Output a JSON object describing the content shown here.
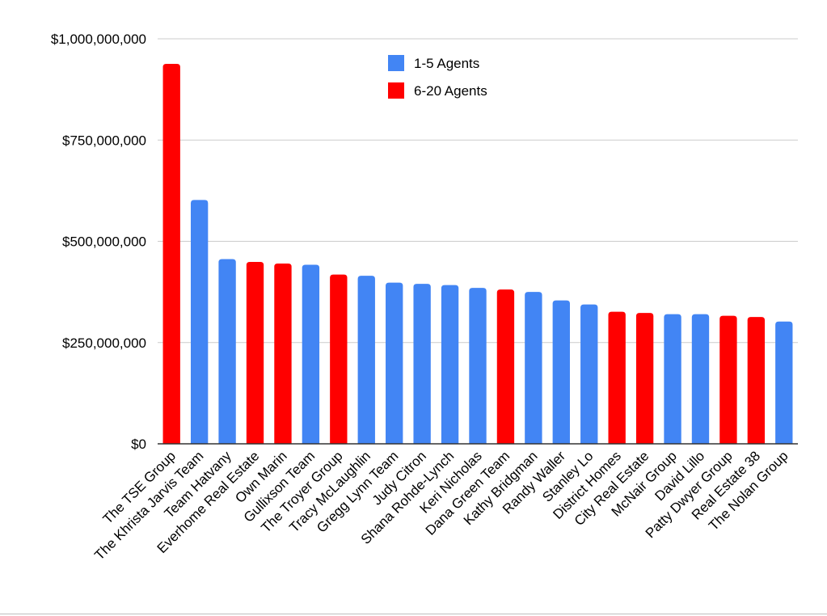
{
  "chart_data": {
    "type": "bar",
    "title": "",
    "xlabel": "",
    "ylabel": "",
    "ylim": [
      0,
      1000000000
    ],
    "yticks": [
      {
        "value": 0,
        "label": "$0"
      },
      {
        "value": 250000000,
        "label": "$250,000,000"
      },
      {
        "value": 500000000,
        "label": "$500,000,000"
      },
      {
        "value": 750000000,
        "label": "$750,000,000"
      },
      {
        "value": 1000000000,
        "label": "$1,000,000,000"
      }
    ],
    "grid": true,
    "legend_position": "top-center",
    "series_meta": [
      {
        "key": "small",
        "name": "1-5 Agents",
        "color": "#4285f4"
      },
      {
        "key": "mid",
        "name": "6-20 Agents",
        "color": "#ff0000"
      }
    ],
    "bars": [
      {
        "category": "The TSE Group",
        "value": 938000000,
        "series": "mid"
      },
      {
        "category": "The Khrista Jarvis Team",
        "value": 602000000,
        "series": "small"
      },
      {
        "category": "Team Hatvany",
        "value": 456000000,
        "series": "small"
      },
      {
        "category": "Everhome Real Estate",
        "value": 449000000,
        "series": "mid"
      },
      {
        "category": "Own Marin",
        "value": 445000000,
        "series": "mid"
      },
      {
        "category": "Gullixson Team",
        "value": 442000000,
        "series": "small"
      },
      {
        "category": "The Troyer Group",
        "value": 418000000,
        "series": "mid"
      },
      {
        "category": "Tracy McLaughlin",
        "value": 415000000,
        "series": "small"
      },
      {
        "category": "Gregg Lynn Team",
        "value": 398000000,
        "series": "small"
      },
      {
        "category": "Judy Citron",
        "value": 395000000,
        "series": "small"
      },
      {
        "category": "Shana Rohde-Lynch",
        "value": 392000000,
        "series": "small"
      },
      {
        "category": "Keri Nicholas",
        "value": 385000000,
        "series": "small"
      },
      {
        "category": "Dana Green Team",
        "value": 381000000,
        "series": "mid"
      },
      {
        "category": "Kathy Bridgman",
        "value": 375000000,
        "series": "small"
      },
      {
        "category": "Randy Waller",
        "value": 354000000,
        "series": "small"
      },
      {
        "category": "Stanley Lo",
        "value": 344000000,
        "series": "small"
      },
      {
        "category": "District Homes",
        "value": 326000000,
        "series": "mid"
      },
      {
        "category": "City Real Estate",
        "value": 323000000,
        "series": "mid"
      },
      {
        "category": "McNair Group",
        "value": 320000000,
        "series": "small"
      },
      {
        "category": "David Lillo",
        "value": 320000000,
        "series": "small"
      },
      {
        "category": "Patty Dwyer Group",
        "value": 316000000,
        "series": "mid"
      },
      {
        "category": "Real Estate 38",
        "value": 313000000,
        "series": "mid"
      },
      {
        "category": "The Nolan Group",
        "value": 302000000,
        "series": "small"
      }
    ]
  }
}
